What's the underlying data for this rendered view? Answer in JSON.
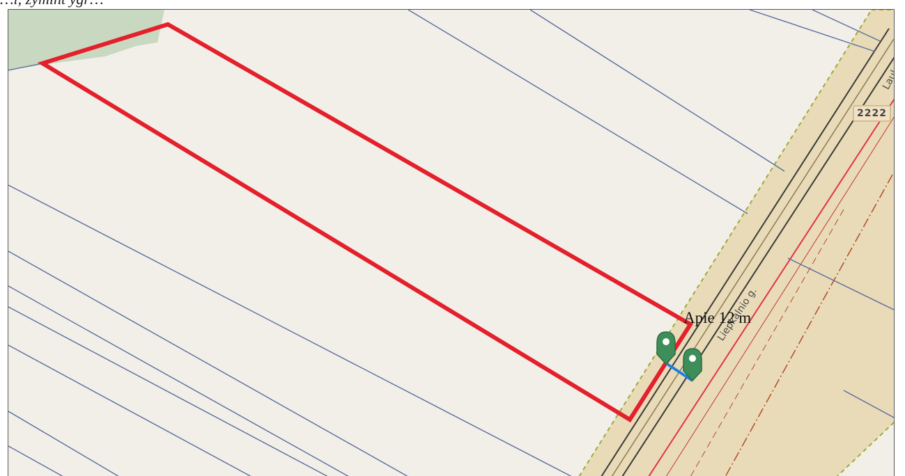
{
  "header": {
    "caption": "…i, žymint ygr…"
  },
  "map": {
    "colors": {
      "background": "#f2efe9",
      "parcel_lines": "#5a6d9c",
      "forest": "#c9d8c0",
      "road_band": "#e9dbb8",
      "road_band_border": "#9caa3a",
      "selected_parcel": "#e3202b",
      "measure_line": "#1f7fe0",
      "marker": "#3e8e5a"
    },
    "labels": {
      "road_name": "Liepkalnio g.",
      "road_name_short": "Lauk",
      "road_number": "2222",
      "distance": "Apie 12 m"
    },
    "markers": [
      {
        "name": "start-marker",
        "icon": "map-pin-icon"
      },
      {
        "name": "end-marker",
        "icon": "map-pin-icon"
      }
    ]
  }
}
